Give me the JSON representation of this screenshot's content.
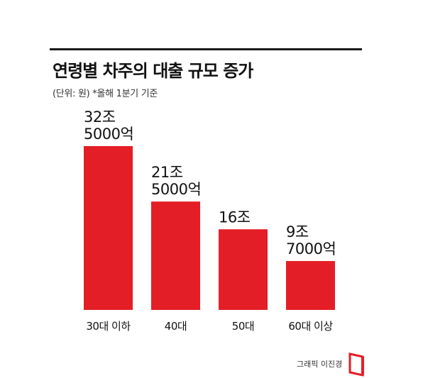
{
  "title": "연령별 차주의 대출 규모 증가",
  "subtitle": "(단위: 원) *올해 1분기 기준",
  "credit": "그래픽 이진경",
  "colors": {
    "bar": "#e41e26",
    "rule": "#1a1a1a",
    "text": "#111111"
  },
  "logo_icon": "red-bracket-logo-icon",
  "chart_data": {
    "type": "bar",
    "title": "연령별 차주의 대출 규모 증가",
    "unit": "원",
    "categories": [
      "30대 이하",
      "40대",
      "50대",
      "60대 이상"
    ],
    "values": [
      325000,
      215000,
      160000,
      97000
    ],
    "value_unit": "억 원",
    "data_labels": [
      [
        "32조",
        "5000억"
      ],
      [
        "21조",
        "5000억"
      ],
      [
        "16조"
      ],
      [
        "9조",
        "7000억"
      ]
    ],
    "ylim": [
      0,
      325000
    ],
    "grid": false,
    "legend": "none"
  }
}
